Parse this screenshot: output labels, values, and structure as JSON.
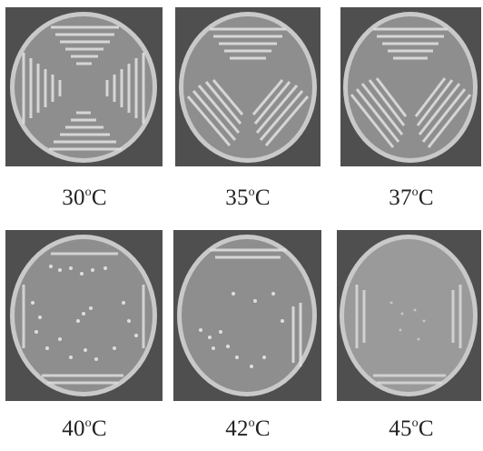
{
  "plates": [
    {
      "temp": "30",
      "deg": "o",
      "unit": "C",
      "growth": "heavy",
      "pattern": "x-quadrants"
    },
    {
      "temp": "35",
      "deg": "o",
      "unit": "C",
      "growth": "heavy",
      "pattern": "y-sectors"
    },
    {
      "temp": "37",
      "deg": "o",
      "unit": "C",
      "growth": "heavy",
      "pattern": "y-sectors"
    },
    {
      "temp": "40",
      "deg": "o",
      "unit": "C",
      "growth": "colonies-dense",
      "pattern": "x-quadrants"
    },
    {
      "temp": "42",
      "deg": "o",
      "unit": "C",
      "growth": "colonies-sparse",
      "pattern": "y-sectors"
    },
    {
      "temp": "45",
      "deg": "o",
      "unit": "C",
      "growth": "faint",
      "pattern": "x-quadrants"
    }
  ],
  "colors": {
    "background": "#4f4f4f",
    "agar": "#8f8f8f",
    "rim": "#d2d2d2",
    "growth": "#d9d9d9"
  }
}
